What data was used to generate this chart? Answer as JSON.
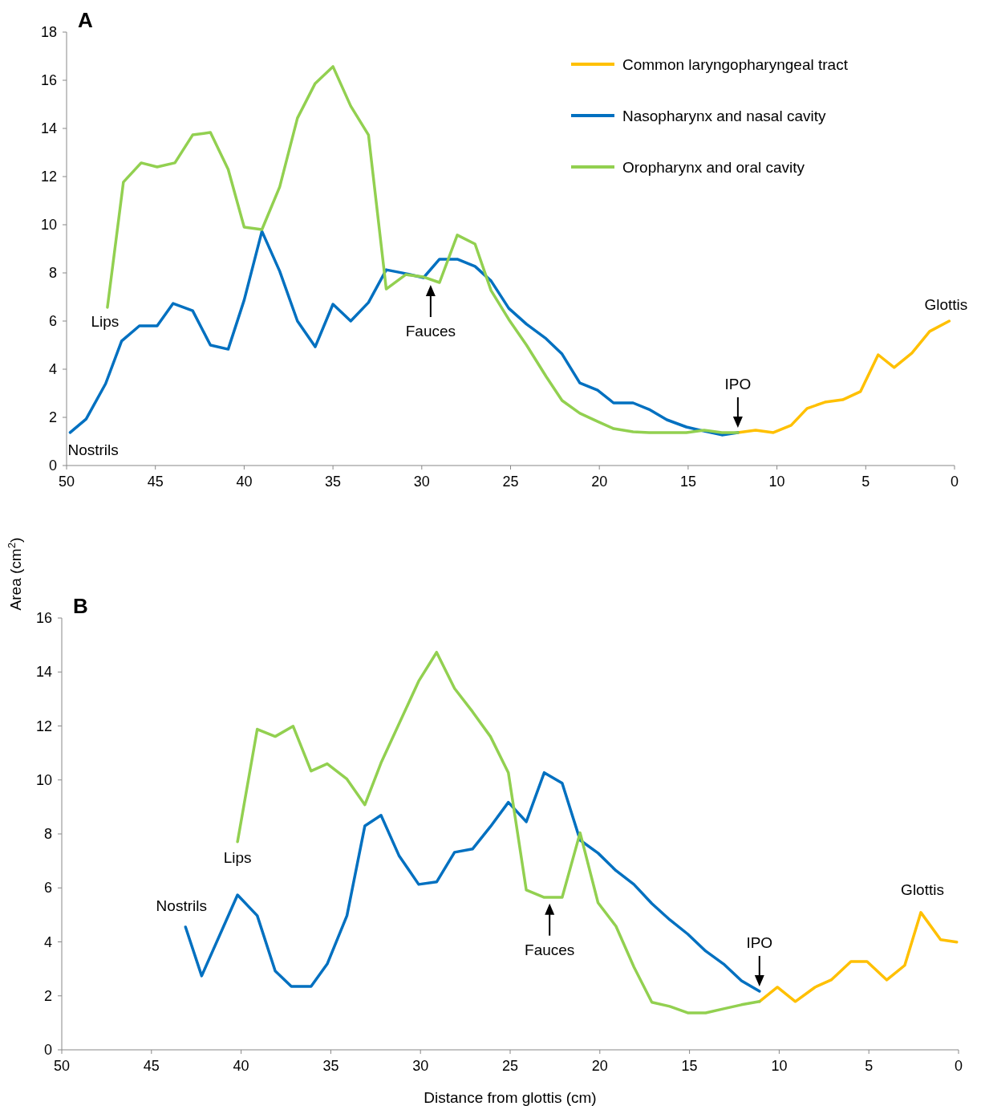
{
  "chart_data": [
    {
      "type": "line",
      "title": "A",
      "ylabel": "Area (cm$^{2}$)",
      "xlim": [
        50,
        0
      ],
      "xticks": [
        50,
        45,
        40,
        35,
        30,
        25,
        20,
        15,
        10,
        5,
        0
      ],
      "ylim": [
        0,
        18
      ],
      "yticks": [
        0,
        2,
        4,
        6,
        8,
        10,
        12,
        14,
        16,
        18
      ],
      "legend": "top right",
      "grid": false,
      "marker": "none",
      "annotations": [
        {
          "text": "Nostrils",
          "x": 49.8,
          "y": 1.37
        },
        {
          "text": "Lips",
          "x": 47.7,
          "y": 6.57
        },
        {
          "text": "Fauces",
          "x": 29.5,
          "y": 7.7
        },
        {
          "text": "IPO",
          "x": 12.2,
          "y": 1.37
        },
        {
          "text": "Glottis",
          "x": 0.3,
          "y": 6
        }
      ],
      "series": [
        {
          "name": "Common laryngopharyngeal tract",
          "color": "#ffc000",
          "x": [
            12.2,
            11.2,
            10.2,
            9.2,
            8.3,
            7.3,
            6.3,
            5.3,
            4.3,
            3.4,
            2.4,
            1.4,
            0.3
          ],
          "values": [
            1.37,
            1.47,
            1.37,
            1.67,
            2.37,
            2.63,
            2.73,
            3.07,
            4.6,
            4.07,
            4.67,
            5.57,
            6
          ]
        },
        {
          "name": "Nasopharynx and nasal cavity",
          "color": "#0070c0",
          "x": [
            49.8,
            48.9,
            47.8,
            46.9,
            45.9,
            44.9,
            44,
            42.9,
            41.9,
            40.9,
            40,
            39,
            38,
            37,
            36,
            35,
            34,
            33,
            32,
            30.9,
            29.9,
            29,
            28,
            27,
            26.1,
            25.1,
            24.1,
            23,
            22.1,
            21.1,
            20.1,
            19.2,
            18.1,
            17.2,
            16.2,
            15.1,
            14.1,
            13.1,
            12.2
          ],
          "values": [
            1.37,
            1.93,
            3.4,
            5.17,
            5.8,
            5.8,
            6.73,
            6.43,
            5,
            4.83,
            6.87,
            9.73,
            8.07,
            6,
            4.93,
            6.7,
            6,
            6.77,
            8.13,
            7.97,
            7.8,
            8.57,
            8.57,
            8.27,
            7.67,
            6.53,
            5.87,
            5.27,
            4.63,
            3.43,
            3.13,
            2.6,
            2.6,
            2.33,
            1.9,
            1.6,
            1.43,
            1.27,
            1.37
          ]
        },
        {
          "name": "Oropharynx and oral cavity",
          "color": "#92d050",
          "x": [
            47.7,
            46.8,
            45.8,
            44.9,
            43.9,
            42.9,
            41.9,
            40.9,
            40,
            39,
            38,
            37,
            36,
            35,
            34,
            33,
            32,
            30.9,
            29.9,
            29,
            28,
            27,
            26.1,
            25.1,
            24.1,
            23,
            22.1,
            21.1,
            20.1,
            19.2,
            18.1,
            17.2,
            16.2,
            15.1,
            14.1,
            13.1,
            12.2
          ],
          "values": [
            6.57,
            11.77,
            12.57,
            12.4,
            12.57,
            13.73,
            13.83,
            12.3,
            9.9,
            9.8,
            11.57,
            14.43,
            15.87,
            16.57,
            14.93,
            13.73,
            7.33,
            7.93,
            7.83,
            7.6,
            9.57,
            9.2,
            7.27,
            6.07,
            5,
            3.7,
            2.7,
            2.17,
            1.83,
            1.53,
            1.4,
            1.37,
            1.37,
            1.37,
            1.47,
            1.37,
            1.37
          ]
        }
      ]
    },
    {
      "type": "line",
      "title": "B",
      "xlabel": "Distance from glottis (cm)",
      "xlim": [
        50,
        0
      ],
      "xticks": [
        50,
        45,
        40,
        35,
        30,
        25,
        20,
        15,
        10,
        5,
        0
      ],
      "ylim": [
        0,
        16
      ],
      "yticks": [
        0,
        2,
        4,
        6,
        8,
        10,
        12,
        14,
        16
      ],
      "grid": false,
      "marker": "none",
      "annotations": [
        {
          "text": "Nostrils",
          "x": 43.1,
          "y": 4.55
        },
        {
          "text": "Lips",
          "x": 40.2,
          "y": 7.71
        },
        {
          "text": "Fauces",
          "x": 22.8,
          "y": 5.6
        },
        {
          "text": "IPO",
          "x": 11.1,
          "y": 2.17
        },
        {
          "text": "Glottis",
          "x": 2.1,
          "y": 5.09
        }
      ],
      "series": [
        {
          "color": "#ffc000",
          "x": [
            11.1,
            10.1,
            9.1,
            8,
            7.1,
            6,
            5.1,
            4,
            3,
            2.1,
            1,
            0.1
          ],
          "values": [
            1.79,
            2.32,
            1.79,
            2.32,
            2.59,
            3.27,
            3.27,
            2.59,
            3.13,
            5.09,
            4.08,
            3.99
          ]
        },
        {
          "color": "#0070c0",
          "x": [
            43.1,
            42.2,
            40.2,
            39.1,
            38.1,
            37.2,
            36.1,
            35.2,
            34.1,
            33.1,
            32.2,
            31.2,
            30.1,
            29.1,
            28.1,
            27.1,
            26.1,
            25.1,
            24.1,
            23.1,
            22.1,
            21.1,
            20.1,
            19.1,
            18.1,
            17.1,
            16.1,
            15.1,
            14.1,
            13.1,
            12.1,
            11.1
          ],
          "values": [
            4.55,
            2.74,
            5.74,
            4.97,
            2.92,
            2.35,
            2.35,
            3.18,
            4.97,
            8.3,
            8.69,
            7.2,
            6.13,
            6.22,
            7.32,
            7.44,
            8.27,
            9.17,
            8.45,
            10.27,
            9.88,
            7.77,
            7.29,
            6.64,
            6.13,
            5.42,
            4.82,
            4.29,
            3.66,
            3.18,
            2.56,
            2.17
          ]
        },
        {
          "color": "#92d050",
          "x": [
            40.2,
            39.1,
            38.1,
            37.1,
            36.1,
            35.2,
            34.1,
            33.1,
            32.2,
            30.1,
            29.1,
            28.1,
            27.1,
            26.1,
            25.1,
            24.1,
            23.1,
            22.1,
            21.1,
            20.1,
            19.1,
            18.1,
            17.1,
            16.1,
            15.1,
            14.1,
            13.1,
            12.1,
            11.1
          ],
          "values": [
            7.71,
            11.88,
            11.61,
            11.99,
            10.33,
            10.6,
            10.03,
            9.08,
            10.63,
            13.66,
            14.73,
            13.39,
            12.53,
            11.61,
            10.27,
            5.92,
            5.65,
            5.65,
            8.04,
            5.45,
            4.58,
            3.07,
            1.76,
            1.61,
            1.37,
            1.37,
            1.52,
            1.67,
            1.79
          ]
        }
      ]
    }
  ]
}
